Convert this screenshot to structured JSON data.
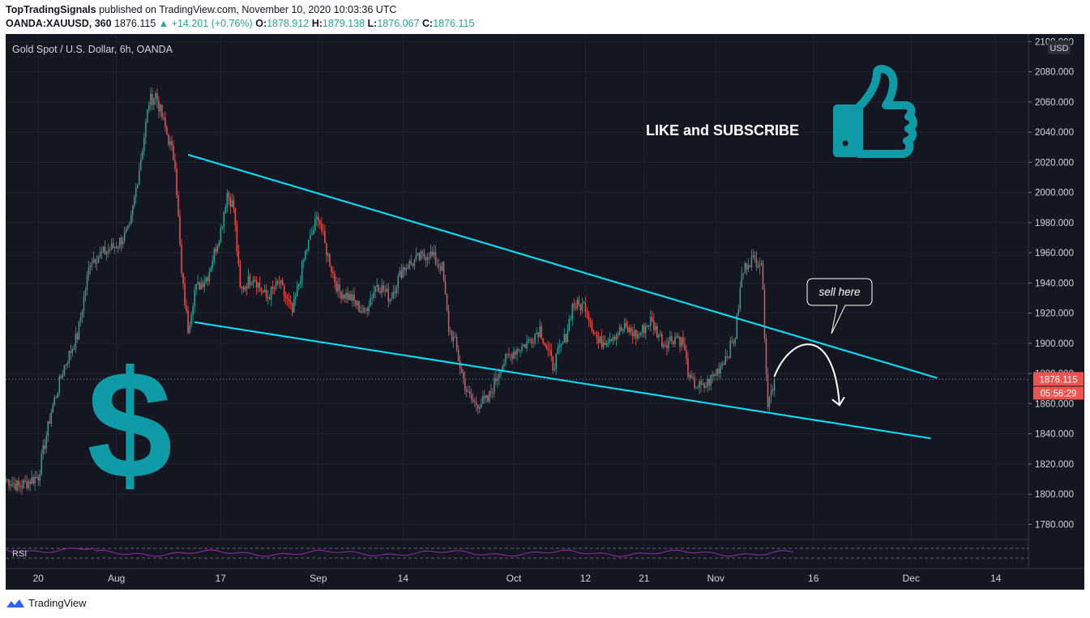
{
  "header": {
    "author": "TopTradingSignals",
    "published_text": "published on TradingView.com, November 10, 2020 10:03:36 UTC",
    "symbol": "OANDA:XAUUSD, 360",
    "last": "1876.115",
    "change": "+14.201 (+0.76%)",
    "o_label": "O:",
    "o": "1878.912",
    "h_label": "H:",
    "h": "1879.138",
    "l_label": "L:",
    "l": "1876.067",
    "c_label": "C:",
    "c": "1876.115"
  },
  "chart_title": "Gold Spot / U.S. Dollar, 6h, OANDA",
  "annotations": {
    "like_text": "LIKE and SUBSCRIBE",
    "sell_bubble": "sell here"
  },
  "price_axis": {
    "currency_badge": "USD",
    "current_price_label": "1876.115",
    "countdown_label": "05:56:29"
  },
  "rsi_label": "RSI",
  "footer": {
    "brand": "TradingView"
  },
  "colors": {
    "background": "#141722",
    "up": "#26a69a",
    "down": "#ef5350",
    "trendline": "#00e5ff",
    "icon_teal": "#0e9aa7",
    "rsi": "#9c27b0"
  },
  "chart_data": {
    "type": "candlestick",
    "y_ticks": [
      2100,
      2080,
      2060,
      2040,
      2020,
      2000,
      1980,
      1960,
      1940,
      1920,
      1900,
      1880,
      1860,
      1840,
      1820,
      1800,
      1780
    ],
    "y_tick_labels": [
      "2100.000",
      "2080.000",
      "2060.000",
      "2040.000",
      "2020.000",
      "2000.000",
      "1980.000",
      "1960.000",
      "1940.000",
      "1920.000",
      "1900.000",
      "1880.000",
      "1860.000",
      "1840.000",
      "1820.000",
      "1800.000",
      "1780.000"
    ],
    "ylim": [
      1770,
      2105
    ],
    "x_ticks": [
      {
        "date": "2020-07-20",
        "label": "20"
      },
      {
        "date": "2020-08-01",
        "label": "Aug"
      },
      {
        "date": "2020-08-17",
        "label": "17"
      },
      {
        "date": "2020-09-01",
        "label": "Sep"
      },
      {
        "date": "2020-09-14",
        "label": "14"
      },
      {
        "date": "2020-10-01",
        "label": "Oct"
      },
      {
        "date": "2020-10-12",
        "label": "12"
      },
      {
        "date": "2020-10-21",
        "label": "21"
      },
      {
        "date": "2020-11-01",
        "label": "Nov"
      },
      {
        "date": "2020-11-16",
        "label": "16"
      },
      {
        "date": "2020-12-01",
        "label": "Dec"
      },
      {
        "date": "2020-12-14",
        "label": "14"
      }
    ],
    "xlim": [
      "2020-07-15",
      "2020-12-19"
    ],
    "close_path": [
      [
        "2020-07-15",
        1810
      ],
      [
        "2020-07-17",
        1805
      ],
      [
        "2020-07-20",
        1812
      ],
      [
        "2020-07-22",
        1855
      ],
      [
        "2020-07-24",
        1885
      ],
      [
        "2020-07-26",
        1905
      ],
      [
        "2020-07-28",
        1955
      ],
      [
        "2020-07-30",
        1960
      ],
      [
        "2020-08-01",
        1965
      ],
      [
        "2020-08-03",
        1975
      ],
      [
        "2020-08-05",
        2030
      ],
      [
        "2020-08-06",
        2060
      ],
      [
        "2020-08-07",
        2065
      ],
      [
        "2020-08-08",
        2050
      ],
      [
        "2020-08-10",
        2020
      ],
      [
        "2020-08-11",
        1945
      ],
      [
        "2020-08-12",
        1910
      ],
      [
        "2020-08-13",
        1935
      ],
      [
        "2020-08-15",
        1945
      ],
      [
        "2020-08-17",
        1975
      ],
      [
        "2020-08-18",
        2000
      ],
      [
        "2020-08-19",
        1990
      ],
      [
        "2020-08-20",
        1935
      ],
      [
        "2020-08-22",
        1945
      ],
      [
        "2020-08-24",
        1930
      ],
      [
        "2020-08-26",
        1940
      ],
      [
        "2020-08-28",
        1920
      ],
      [
        "2020-08-30",
        1960
      ],
      [
        "2020-09-01",
        1985
      ],
      [
        "2020-09-02",
        1965
      ],
      [
        "2020-09-04",
        1935
      ],
      [
        "2020-09-06",
        1930
      ],
      [
        "2020-09-08",
        1920
      ],
      [
        "2020-09-10",
        1940
      ],
      [
        "2020-09-12",
        1930
      ],
      [
        "2020-09-14",
        1950
      ],
      [
        "2020-09-16",
        1955
      ],
      [
        "2020-09-18",
        1960
      ],
      [
        "2020-09-20",
        1950
      ],
      [
        "2020-09-21",
        1910
      ],
      [
        "2020-09-22",
        1900
      ],
      [
        "2020-09-23",
        1880
      ],
      [
        "2020-09-24",
        1865
      ],
      [
        "2020-09-25",
        1860
      ],
      [
        "2020-09-27",
        1862
      ],
      [
        "2020-09-29",
        1885
      ],
      [
        "2020-10-01",
        1895
      ],
      [
        "2020-10-03",
        1900
      ],
      [
        "2020-10-05",
        1910
      ],
      [
        "2020-10-07",
        1885
      ],
      [
        "2020-10-09",
        1905
      ],
      [
        "2020-10-10",
        1925
      ],
      [
        "2020-10-12",
        1925
      ],
      [
        "2020-10-14",
        1900
      ],
      [
        "2020-10-16",
        1905
      ],
      [
        "2020-10-18",
        1910
      ],
      [
        "2020-10-20",
        1905
      ],
      [
        "2020-10-22",
        1915
      ],
      [
        "2020-10-24",
        1900
      ],
      [
        "2020-10-26",
        1905
      ],
      [
        "2020-10-27",
        1900
      ],
      [
        "2020-10-28",
        1875
      ],
      [
        "2020-10-30",
        1870
      ],
      [
        "2020-11-01",
        1880
      ],
      [
        "2020-11-03",
        1895
      ],
      [
        "2020-11-04",
        1905
      ],
      [
        "2020-11-05",
        1945
      ],
      [
        "2020-11-06",
        1955
      ],
      [
        "2020-11-08",
        1955
      ],
      [
        "2020-11-09",
        1860
      ],
      [
        "2020-11-10",
        1876
      ]
    ],
    "trendlines": [
      {
        "from": [
          "2020-08-12",
          2025
        ],
        "to": [
          "2020-12-05",
          1877
        ]
      },
      {
        "from": [
          "2020-08-13",
          1914
        ],
        "to": [
          "2020-12-04",
          1837
        ]
      }
    ],
    "last_price": 1876.115,
    "arrow": {
      "from": [
        "2020-11-10",
        1878
      ],
      "peak": [
        "2020-11-16",
        1900
      ],
      "to": [
        "2020-11-20",
        1859
      ]
    }
  }
}
